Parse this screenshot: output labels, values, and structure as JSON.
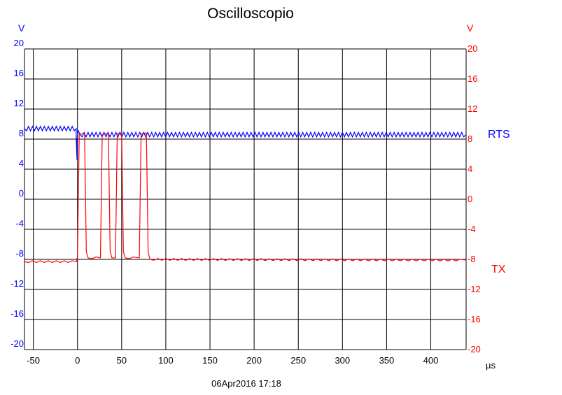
{
  "chart_data": {
    "type": "line",
    "title": "Oscilloscopio",
    "timestamp": "06Apr2016  17:18",
    "xlabel": "µs",
    "left_axis": {
      "unit": "V",
      "color": "#0000ff",
      "ylim": [
        -20,
        20
      ],
      "ticks": [
        "20",
        "16",
        "12",
        "8",
        "4",
        "0",
        "-4",
        "-8",
        "-12",
        "-16",
        "-20"
      ]
    },
    "right_axis": {
      "unit": "V",
      "color": "#ff0000",
      "ylim": [
        -20,
        20
      ],
      "ticks": [
        "20",
        "16",
        "12",
        "8",
        "4",
        "0",
        "-4",
        "-8",
        "-12",
        "-16",
        "-20"
      ]
    },
    "xlim": [
      -60,
      440
    ],
    "x_ticks": [
      "-50",
      "0",
      "50",
      "100",
      "150",
      "200",
      "250",
      "300",
      "350",
      "400"
    ],
    "grid": true,
    "series": [
      {
        "name": "RTS",
        "color": "#0000ff",
        "axis": "left",
        "ripple": 0.3,
        "ripple_period_us": 4.5,
        "x": [
          -60,
          -1.5,
          -1.5,
          -0.5,
          -0.5,
          0.5,
          0.5,
          3,
          440
        ],
        "y": [
          9.4,
          9.4,
          8.2,
          5.2,
          8.0,
          8.9,
          9.2,
          8.6,
          8.6
        ]
      },
      {
        "name": "TX",
        "color": "#ff0000",
        "axis": "right",
        "ripple": 0.12,
        "ripple_period_us": 9,
        "x": [
          -60,
          -1,
          0,
          2,
          8,
          10,
          12,
          26,
          28,
          30,
          35,
          37,
          39,
          43,
          45,
          47,
          50,
          52,
          54,
          70,
          72,
          74,
          78,
          80,
          82,
          440
        ],
        "y": [
          -8.3,
          -8.3,
          -7.5,
          8.6,
          8.8,
          -7.0,
          -7.8,
          -7.8,
          8.6,
          8.7,
          8.8,
          -7.0,
          -7.8,
          -7.8,
          8.6,
          8.8,
          8.8,
          -7.0,
          -7.8,
          -7.8,
          8.6,
          8.8,
          8.8,
          -7.0,
          -8.0,
          -8.1
        ]
      }
    ]
  }
}
